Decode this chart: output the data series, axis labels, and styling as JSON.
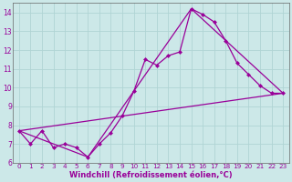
{
  "xlabel": "Windchill (Refroidissement éolien,°C)",
  "background_color": "#cce8e8",
  "grid_color": "#b0d4d4",
  "line_color": "#990099",
  "spine_color": "#666666",
  "xlim": [
    -0.5,
    23.5
  ],
  "ylim": [
    6,
    14.5
  ],
  "xtick_labels": [
    "0",
    "1",
    "2",
    "3",
    "4",
    "5",
    "6",
    "7",
    "8",
    "9",
    "10",
    "11",
    "12",
    "13",
    "14",
    "15",
    "16",
    "17",
    "18",
    "19",
    "20",
    "21",
    "22",
    "23"
  ],
  "xtick_vals": [
    0,
    1,
    2,
    3,
    4,
    5,
    6,
    7,
    8,
    9,
    10,
    11,
    12,
    13,
    14,
    15,
    16,
    17,
    18,
    19,
    20,
    21,
    22,
    23
  ],
  "yticks": [
    6,
    7,
    8,
    9,
    10,
    11,
    12,
    13,
    14
  ],
  "series1_x": [
    0,
    1,
    2,
    3,
    4,
    5,
    6,
    7,
    8,
    9,
    10,
    11,
    12,
    13,
    14,
    15,
    16,
    17,
    18,
    19,
    20,
    21,
    22,
    23
  ],
  "series1_y": [
    7.7,
    7.0,
    7.7,
    6.8,
    7.0,
    6.8,
    6.3,
    7.0,
    7.6,
    8.5,
    9.8,
    11.5,
    11.2,
    11.7,
    11.9,
    14.2,
    13.9,
    13.5,
    12.5,
    11.3,
    10.7,
    10.1,
    9.7,
    9.7
  ],
  "series2_x": [
    0,
    23
  ],
  "series2_y": [
    7.7,
    9.7
  ],
  "series3_x": [
    0,
    6,
    15,
    23
  ],
  "series3_y": [
    7.7,
    6.3,
    14.2,
    9.7
  ],
  "marker_size": 2.5,
  "line_width": 0.9,
  "tick_fontsize": 5.2,
  "xlabel_fontsize": 6.0
}
